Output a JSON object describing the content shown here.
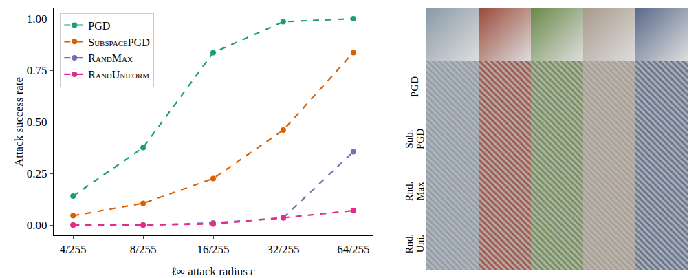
{
  "chart_data": {
    "type": "line",
    "x_label": "ℓ∞ attack radius ε",
    "y_label": "Attack success rate",
    "categories": [
      "4/255",
      "8/255",
      "16/255",
      "32/255",
      "64/255"
    ],
    "series": [
      {
        "name": "PGD",
        "color": "#1b9e77",
        "values": [
          0.14,
          0.375,
          0.835,
          0.985,
          1.0
        ]
      },
      {
        "name": "SubspacePGD",
        "color": "#d95f02",
        "values": [
          0.045,
          0.105,
          0.225,
          0.46,
          0.835
        ]
      },
      {
        "name": "RandMax",
        "color": "#7570b3",
        "values": [
          0.0,
          0.0,
          0.01,
          0.035,
          0.355
        ]
      },
      {
        "name": "RandUniform",
        "color": "#e7298a",
        "values": [
          0.0,
          0.0,
          0.005,
          0.035,
          0.07
        ]
      }
    ],
    "ylim": [
      -0.05,
      1.05
    ],
    "yticks": [
      {
        "value": 0,
        "label": "0.00"
      },
      {
        "value": 0.25,
        "label": "0.25"
      },
      {
        "value": 0.5,
        "label": "0.50"
      },
      {
        "value": 0.75,
        "label": "0.75"
      },
      {
        "value": 1,
        "label": "1.00"
      }
    ],
    "grid": false,
    "legend": "upper left",
    "marker": "circle",
    "line_style": "dashed"
  },
  "image_grid": {
    "columns": 5,
    "row_labels": [
      null,
      "PGD",
      "Sub. PGD",
      "Rnd. Max",
      "Rnd. Uni."
    ]
  }
}
